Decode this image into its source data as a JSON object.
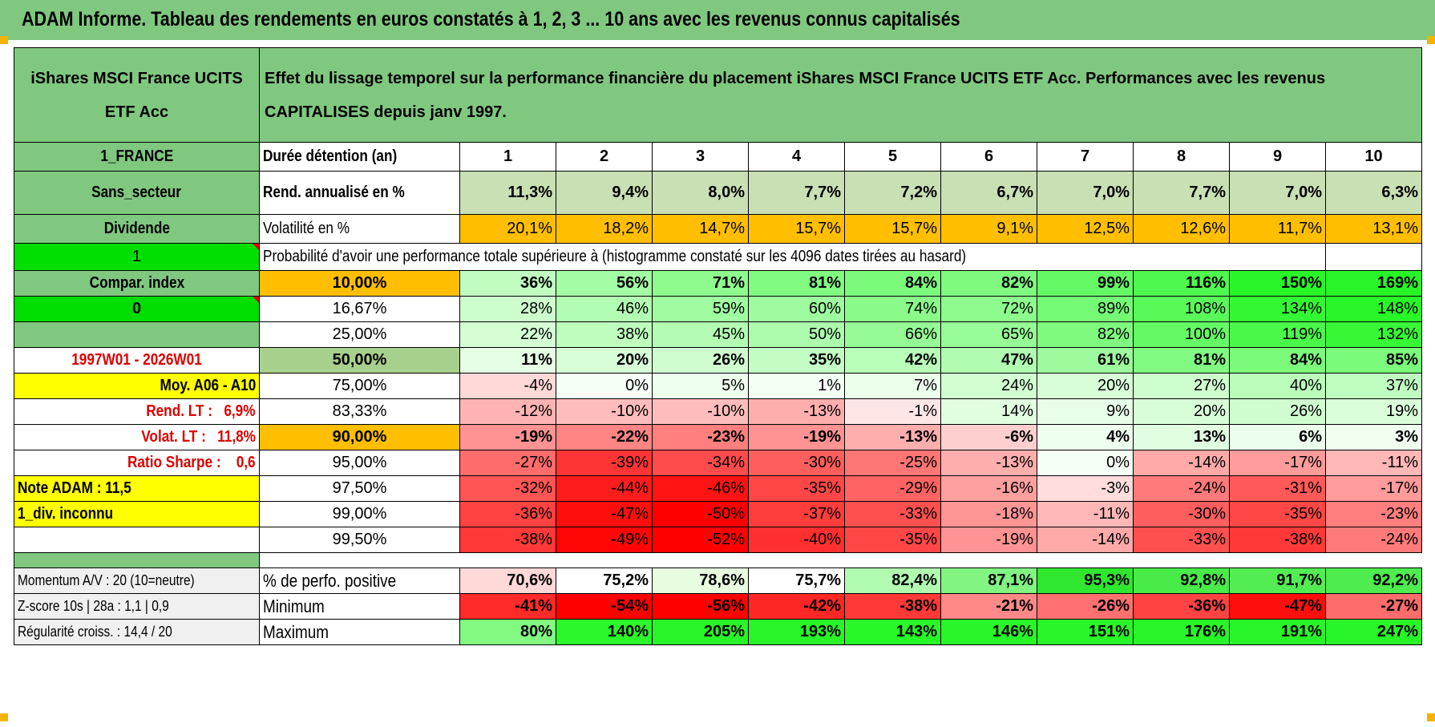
{
  "title": "ADAM Informe. Tableau des rendements en euros constatés à 1, 2, 3 ... 10 ans avec les revenus connus capitalisés",
  "header": {
    "fund": "iShares MSCI France UCITS ETF Acc",
    "description": "Effet du lissage temporel sur la performance financière du placement iShares MSCI France UCITS ETF Acc. Performances avec les revenus CAPITALISES depuis janv 1997."
  },
  "side": {
    "country": "1_FRANCE",
    "sector": "Sans_secteur",
    "dividend": "Dividende",
    "flag1": "1",
    "compar": "Compar. index",
    "flag0": "0",
    "period": "1997W01 - 2026W01",
    "moy": "Moy. A06 - A10",
    "rend_lt_label": "Rend. LT :",
    "rend_lt_value": "6,9%",
    "volat_lt_label": "Volat. LT :",
    "volat_lt_value": "11,8%",
    "sharpe_label": "Ratio Sharpe :",
    "sharpe_value": "0,6",
    "note": "Note ADAM : 11,5",
    "div_inconnu": "1_div. inconnu",
    "momentum": "Momentum A/V : 20 (10=neutre)",
    "zscore": "Z-score 10s | 28a : 1,1 | 0,9",
    "regularite": "Régularité croiss. : 14,4 / 20"
  },
  "rows": {
    "duree_label": "Durée détention (an)",
    "years": [
      "1",
      "2",
      "3",
      "4",
      "5",
      "6",
      "7",
      "8",
      "9",
      "10"
    ],
    "rend_label": "Rend. annualisé en %",
    "rend": [
      "11,3%",
      "9,4%",
      "8,0%",
      "7,7%",
      "7,2%",
      "6,7%",
      "7,0%",
      "7,7%",
      "7,0%",
      "6,3%"
    ],
    "vol_label": "Volatilité en %",
    "vol": [
      "20,1%",
      "18,2%",
      "14,7%",
      "15,7%",
      "15,7%",
      "9,1%",
      "12,5%",
      "12,6%",
      "11,7%",
      "13,1%"
    ],
    "prob_label": "Probabilité d'avoir une performance totale supérieure à (histogramme constaté sur les 4096 dates tirées au hasard)"
  },
  "quantiles": [
    {
      "q": "10,00%",
      "vals": [
        "36%",
        "56%",
        "71%",
        "81%",
        "84%",
        "82%",
        "99%",
        "116%",
        "150%",
        "169%"
      ]
    },
    {
      "q": "16,67%",
      "vals": [
        "28%",
        "46%",
        "59%",
        "60%",
        "74%",
        "72%",
        "89%",
        "108%",
        "134%",
        "148%"
      ]
    },
    {
      "q": "25,00%",
      "vals": [
        "22%",
        "38%",
        "45%",
        "50%",
        "66%",
        "65%",
        "82%",
        "100%",
        "119%",
        "132%"
      ]
    },
    {
      "q": "50,00%",
      "vals": [
        "11%",
        "20%",
        "26%",
        "35%",
        "42%",
        "47%",
        "61%",
        "81%",
        "84%",
        "85%"
      ]
    },
    {
      "q": "75,00%",
      "vals": [
        "-4%",
        "0%",
        "5%",
        "1%",
        "7%",
        "24%",
        "20%",
        "27%",
        "40%",
        "37%"
      ]
    },
    {
      "q": "83,33%",
      "vals": [
        "-12%",
        "-10%",
        "-10%",
        "-13%",
        "-1%",
        "14%",
        "9%",
        "20%",
        "26%",
        "19%"
      ]
    },
    {
      "q": "90,00%",
      "vals": [
        "-19%",
        "-22%",
        "-23%",
        "-19%",
        "-13%",
        "-6%",
        "4%",
        "13%",
        "6%",
        "3%"
      ]
    },
    {
      "q": "95,00%",
      "vals": [
        "-27%",
        "-39%",
        "-34%",
        "-30%",
        "-25%",
        "-13%",
        "0%",
        "-14%",
        "-17%",
        "-11%"
      ]
    },
    {
      "q": "97,50%",
      "vals": [
        "-32%",
        "-44%",
        "-46%",
        "-35%",
        "-29%",
        "-16%",
        "-3%",
        "-24%",
        "-31%",
        "-17%"
      ]
    },
    {
      "q": "99,00%",
      "vals": [
        "-36%",
        "-47%",
        "-50%",
        "-37%",
        "-33%",
        "-18%",
        "-11%",
        "-30%",
        "-35%",
        "-23%"
      ]
    },
    {
      "q": "99,50%",
      "vals": [
        "-38%",
        "-49%",
        "-52%",
        "-40%",
        "-35%",
        "-19%",
        "-14%",
        "-33%",
        "-38%",
        "-24%"
      ]
    }
  ],
  "bottom": {
    "pos_label": "% de perfo. positive",
    "pos": [
      "70,6%",
      "75,2%",
      "78,6%",
      "75,7%",
      "82,4%",
      "87,1%",
      "95,3%",
      "92,8%",
      "91,7%",
      "92,2%"
    ],
    "min_label": "Minimum",
    "min": [
      "-41%",
      "-54%",
      "-56%",
      "-42%",
      "-38%",
      "-21%",
      "-26%",
      "-36%",
      "-47%",
      "-27%"
    ],
    "max_label": "Maximum",
    "max": [
      "80%",
      "140%",
      "205%",
      "193%",
      "143%",
      "146%",
      "151%",
      "176%",
      "191%",
      "247%"
    ]
  },
  "colors": {
    "header_green": "#80c880",
    "bright_green": "#00dd00",
    "yellow": "#ffff00",
    "orange": "#ffbf00",
    "label_red": "#dd0000"
  }
}
